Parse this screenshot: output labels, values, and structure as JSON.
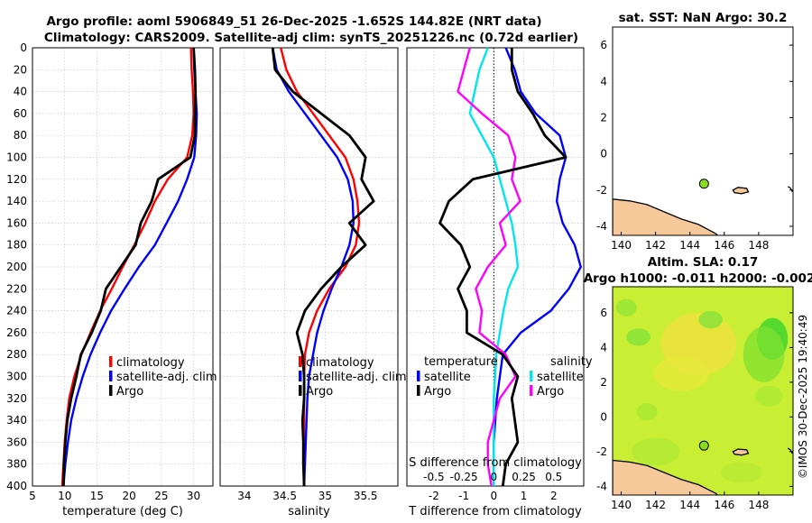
{
  "title": {
    "line1": "Argo profile: aoml 5906849_51 26-Dec-2025 -1.652S 144.82E (NRT data)",
    "line2": "Climatology: CARS2009. Satellite-adj clim: synTS_20251226.nc (0.72d earlier)"
  },
  "colors": {
    "climatology": "#ff0000",
    "satellite": "#0000ff",
    "argo": "#000000",
    "sat_temp": "#0000ff",
    "sat_sal": "#00e5ee",
    "argo_sal": "#ff00ff"
  },
  "depth_axis": {
    "ticks": [
      "0",
      "20",
      "40",
      "60",
      "80",
      "100",
      "120",
      "140",
      "160",
      "180",
      "200",
      "220",
      "240",
      "260",
      "280",
      "300",
      "320",
      "340",
      "360",
      "380",
      "400"
    ]
  },
  "chart_data": [
    {
      "type": "line",
      "id": "temperature",
      "xlabel": "temperature (deg C)",
      "xlim": [
        5,
        33
      ],
      "ylim": [
        0,
        400
      ],
      "xticks": [
        "5",
        "10",
        "15",
        "20",
        "25",
        "30"
      ],
      "legend": {
        "climatology": "climatology",
        "satellite": "satellite-adj. clim",
        "argo": "Argo"
      },
      "series": [
        {
          "name": "climatology",
          "x": [
            29.6,
            29.7,
            29.9,
            30,
            29.8,
            29,
            26,
            24,
            22.5,
            20.8,
            19,
            17.3,
            15.5,
            14,
            12.6,
            11.5,
            10.7,
            10.3,
            10,
            9.8,
            9.6
          ],
          "y": [
            0,
            20,
            40,
            60,
            80,
            100,
            120,
            140,
            160,
            180,
            200,
            220,
            240,
            260,
            280,
            300,
            320,
            340,
            360,
            380,
            400
          ]
        },
        {
          "name": "satellite",
          "x": [
            30,
            30.1,
            30.3,
            30.5,
            30.4,
            30.1,
            29,
            27.6,
            25.8,
            24,
            21.5,
            19.3,
            17.2,
            15.5,
            14,
            12.8,
            11.8,
            11,
            10.5,
            10.1,
            9.8
          ],
          "y": [
            0,
            20,
            40,
            60,
            80,
            100,
            120,
            140,
            160,
            180,
            200,
            220,
            240,
            260,
            280,
            300,
            320,
            340,
            360,
            380,
            400
          ]
        },
        {
          "name": "argo",
          "x": [
            30,
            30.2,
            30.3,
            30.2,
            30.2,
            29.5,
            24.5,
            23.5,
            21.8,
            21,
            18.7,
            16.4,
            15.6,
            14.2,
            12.5,
            11.8,
            11,
            10.4,
            10.1,
            9.9,
            9.8
          ],
          "y": [
            0,
            20,
            40,
            60,
            80,
            100,
            120,
            140,
            160,
            180,
            200,
            220,
            240,
            260,
            280,
            300,
            320,
            340,
            360,
            380,
            400
          ]
        }
      ]
    },
    {
      "type": "line",
      "id": "salinity",
      "xlabel": "salinity",
      "xlim": [
        33.7,
        35.9
      ],
      "ylim": [
        0,
        400
      ],
      "xticks": [
        "34",
        "34.5",
        "35",
        "35.5"
      ],
      "legend": {
        "climatology": "climatology",
        "satellite": "satellite-adj. clim",
        "argo": "Argo"
      },
      "series": [
        {
          "name": "climatology",
          "x": [
            34.45,
            34.52,
            34.65,
            34.85,
            35.05,
            35.25,
            35.35,
            35.4,
            35.42,
            35.38,
            35.25,
            35.05,
            34.9,
            34.8,
            34.75,
            34.74,
            34.74,
            34.74,
            34.74,
            34.74,
            34.74
          ],
          "y": [
            0,
            20,
            40,
            60,
            80,
            100,
            120,
            140,
            160,
            180,
            200,
            220,
            240,
            260,
            280,
            300,
            320,
            340,
            360,
            380,
            400
          ]
        },
        {
          "name": "satellite",
          "x": [
            34.35,
            34.4,
            34.55,
            34.75,
            34.95,
            35.15,
            35.28,
            35.34,
            35.35,
            35.3,
            35.2,
            35.08,
            34.98,
            34.9,
            34.85,
            34.8,
            34.78,
            34.77,
            34.76,
            34.75,
            34.74
          ],
          "y": [
            0,
            20,
            40,
            60,
            80,
            100,
            120,
            140,
            160,
            180,
            200,
            220,
            240,
            260,
            280,
            300,
            320,
            340,
            360,
            380,
            400
          ]
        },
        {
          "name": "argo",
          "x": [
            34.35,
            34.38,
            34.6,
            34.95,
            35.3,
            35.5,
            35.45,
            35.6,
            35.3,
            35.5,
            35.2,
            34.95,
            34.75,
            34.65,
            34.72,
            34.74,
            34.74,
            34.72,
            34.73,
            34.73,
            34.74
          ],
          "y": [
            0,
            20,
            40,
            60,
            80,
            100,
            120,
            140,
            160,
            180,
            200,
            220,
            240,
            260,
            280,
            300,
            320,
            340,
            360,
            380,
            400
          ]
        }
      ]
    },
    {
      "type": "line",
      "id": "differences",
      "xlabel": "T difference from climatology",
      "x2label": "S difference from climatology",
      "xlim": [
        -2.9,
        3
      ],
      "ylim": [
        0,
        400
      ],
      "xticks": [
        "-2",
        "-1",
        "0",
        "1",
        "2"
      ],
      "x2ticks": [
        "-0.5",
        "-0.25",
        "0",
        "0.25",
        "0.5"
      ],
      "legend_headers": {
        "temperature": "temperature",
        "salinity": "salinity"
      },
      "legend": {
        "sat_temp": "satellite",
        "argo_temp": "Argo",
        "sat_sal": "satellite",
        "argo_sal": "Argo"
      },
      "series": [
        {
          "name": "satellite T",
          "x": [
            0.4,
            0.7,
            0.9,
            1.4,
            2.2,
            2.4,
            2.2,
            2.1,
            2.3,
            2.7,
            2.9,
            2.5,
            1.9,
            0.9,
            0.3,
            0.2,
            0.1,
            0.05,
            0,
            0,
            0
          ],
          "y": [
            0,
            20,
            40,
            60,
            80,
            100,
            120,
            140,
            160,
            180,
            200,
            220,
            240,
            260,
            280,
            300,
            320,
            340,
            360,
            380,
            400
          ]
        },
        {
          "name": "Argo T",
          "x": [
            0.6,
            0.6,
            0.8,
            1.3,
            1.7,
            2.4,
            -0.7,
            -1.5,
            -1.8,
            -1.1,
            -0.8,
            -1.2,
            -0.9,
            -0.9,
            0.3,
            0.8,
            0.6,
            0.7,
            0.8,
            0.4,
            0.3
          ],
          "y": [
            0,
            20,
            40,
            60,
            80,
            100,
            120,
            140,
            160,
            180,
            200,
            220,
            240,
            260,
            280,
            300,
            320,
            340,
            360,
            380,
            400
          ]
        },
        {
          "name": "satellite S",
          "x": [
            -0.05,
            -0.12,
            -0.16,
            -0.2,
            -0.1,
            0.0,
            0.05,
            0.1,
            0.15,
            0.18,
            0.2,
            0.12,
            0.08,
            0.05,
            0.02,
            0.01,
            0.0,
            0.0,
            0.0,
            0.0,
            0.0
          ],
          "y": [
            0,
            20,
            40,
            60,
            80,
            100,
            120,
            140,
            160,
            180,
            200,
            220,
            240,
            260,
            280,
            300,
            320,
            340,
            360,
            380,
            400
          ]
        },
        {
          "name": "Argo S",
          "x": [
            -0.2,
            -0.25,
            -0.3,
            -0.1,
            0.12,
            0.18,
            0.15,
            0.22,
            0.05,
            0.1,
            -0.05,
            -0.15,
            -0.1,
            -0.12,
            0.1,
            0.18,
            0.05,
            0.0,
            -0.05,
            -0.05,
            -0.02
          ],
          "y": [
            0,
            20,
            40,
            60,
            80,
            100,
            120,
            140,
            160,
            180,
            200,
            220,
            240,
            260,
            280,
            300,
            320,
            340,
            360,
            380,
            400
          ]
        }
      ]
    },
    {
      "type": "map",
      "id": "sst",
      "title": "sat. SST: NaN Argo: 30.2",
      "xlim": [
        139.5,
        150
      ],
      "ylim": [
        -4.5,
        7
      ],
      "xticks": [
        "140",
        "142",
        "144",
        "146",
        "148"
      ],
      "yticks": [
        "-4",
        "-2",
        "0",
        "2",
        "4",
        "6"
      ],
      "argo_lon": 144.82,
      "argo_lat": -1.652
    },
    {
      "type": "heatmap",
      "id": "sla",
      "title1": "Altim. SLA: 0.17",
      "title2": "Argo h1000: -0.011 h2000: -0.002",
      "xlim": [
        139.5,
        150
      ],
      "ylim": [
        -4.5,
        7.5
      ],
      "xticks": [
        "140",
        "142",
        "144",
        "146",
        "148"
      ],
      "yticks": [
        "-4",
        "-2",
        "0",
        "2",
        "4",
        "6"
      ],
      "argo_lon": 144.82,
      "argo_lat": -1.652
    }
  ],
  "credit": "©IMOS 30-Dec-2025 19:40:49"
}
